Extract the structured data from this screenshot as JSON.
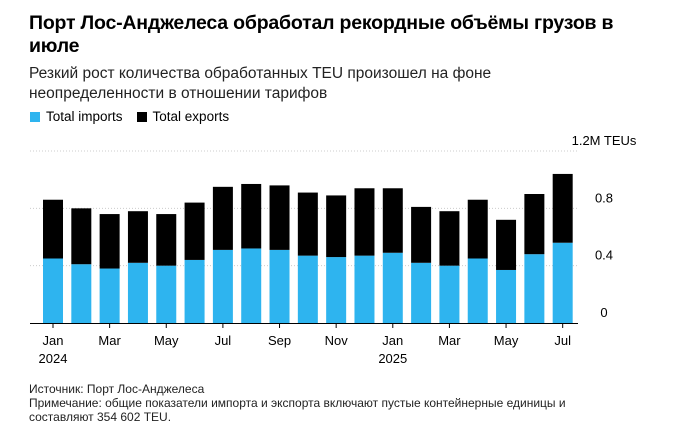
{
  "header": {
    "title": "Порт Лос-Анджелеса обработал рекордные объёмы грузов в июле",
    "subtitle": "Резкий рост количества обработанных TEU произошел на фоне неопределенности в отношении тарифов"
  },
  "colors": {
    "imports": "#2eb4ef",
    "exports": "#000000",
    "grid": "#cccccc"
  },
  "legend": [
    {
      "label": "Total imports",
      "color": "#2eb4ef"
    },
    {
      "label": "Total exports",
      "color": "#000000"
    }
  ],
  "chart_data": {
    "type": "bar",
    "stacked": true,
    "categories": [
      "Jan 2024",
      "Feb 2024",
      "Mar 2024",
      "Apr 2024",
      "May 2024",
      "Jun 2024",
      "Jul 2024",
      "Aug 2024",
      "Sep 2024",
      "Oct 2024",
      "Nov 2024",
      "Dec 2024",
      "Jan 2025",
      "Feb 2025",
      "Mar 2025",
      "Apr 2025",
      "May 2025",
      "Jun 2025",
      "Jul 2025"
    ],
    "series": [
      {
        "name": "Total imports",
        "values": [
          0.45,
          0.41,
          0.38,
          0.42,
          0.4,
          0.44,
          0.51,
          0.52,
          0.51,
          0.47,
          0.46,
          0.47,
          0.49,
          0.42,
          0.4,
          0.45,
          0.37,
          0.48,
          0.56
        ]
      },
      {
        "name": "Total exports",
        "values": [
          0.41,
          0.39,
          0.38,
          0.36,
          0.36,
          0.4,
          0.44,
          0.45,
          0.45,
          0.44,
          0.43,
          0.47,
          0.45,
          0.39,
          0.38,
          0.41,
          0.35,
          0.42,
          0.48
        ]
      }
    ],
    "y_axis": {
      "ticks": [
        "0",
        "0.4",
        "0.8",
        "1.2M TEUs"
      ],
      "tick_values": [
        0,
        0.4,
        0.8,
        1.2
      ],
      "ylim": [
        0,
        1.2
      ],
      "position": "right"
    },
    "x_axis": {
      "tick_labels": [
        {
          "index": 0,
          "label": "Jan",
          "year": "2024"
        },
        {
          "index": 2,
          "label": "Mar"
        },
        {
          "index": 4,
          "label": "May"
        },
        {
          "index": 6,
          "label": "Jul"
        },
        {
          "index": 8,
          "label": "Sep"
        },
        {
          "index": 10,
          "label": "Nov"
        },
        {
          "index": 12,
          "label": "Jan",
          "year": "2025"
        },
        {
          "index": 14,
          "label": "Mar"
        },
        {
          "index": 16,
          "label": "May"
        },
        {
          "index": 18,
          "label": "Jul"
        }
      ]
    },
    "grid": true,
    "legend_position": "top-left"
  },
  "footer": {
    "source": "Источник: Порт Лос-Анджелеса",
    "note": "Примечание: общие показатели импорта и экспорта включают пустые контейнерные единицы и составляют 354 602 TEU."
  }
}
